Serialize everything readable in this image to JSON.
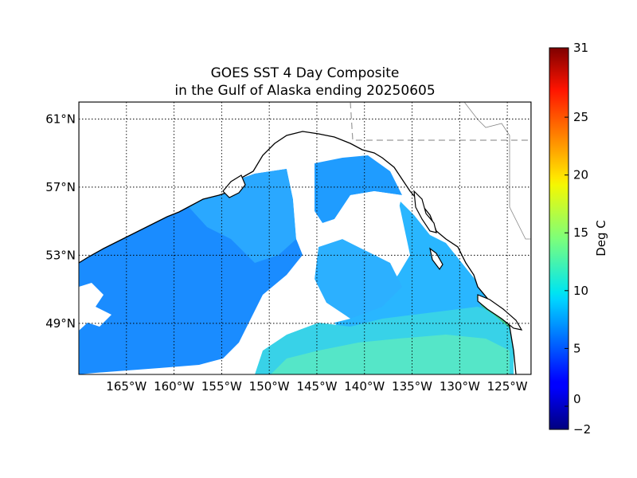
{
  "title": {
    "line1": "GOES SST 4 Day Composite",
    "line2": "in the Gulf of Alaska ending 20250605"
  },
  "map": {
    "lon_labels": [
      "165°W",
      "160°W",
      "155°W",
      "150°W",
      "145°W",
      "140°W",
      "135°W",
      "130°W",
      "125°W"
    ],
    "lon_values": [
      -165,
      -160,
      -155,
      -150,
      -145,
      -140,
      -135,
      -130,
      -125
    ],
    "lat_labels": [
      "61°N",
      "57°N",
      "53°N",
      "49°N"
    ],
    "lat_values": [
      61,
      57,
      53,
      49
    ],
    "lon_range": [
      -170,
      -122.5
    ],
    "lat_range": [
      46,
      62
    ],
    "gridlines": "dotted",
    "land_color": "#ffffff",
    "coastline_color": "#000000",
    "border_style": "dashed gray"
  },
  "colorbar": {
    "label": "Deg C",
    "tick_labels": [
      "31",
      "25",
      "20",
      "15",
      "10",
      "5",
      "0",
      "−2"
    ],
    "tick_values": [
      31,
      25,
      20,
      15,
      10,
      5,
      0,
      -2
    ],
    "range": [
      -2,
      31
    ],
    "colormap": "jet"
  }
}
